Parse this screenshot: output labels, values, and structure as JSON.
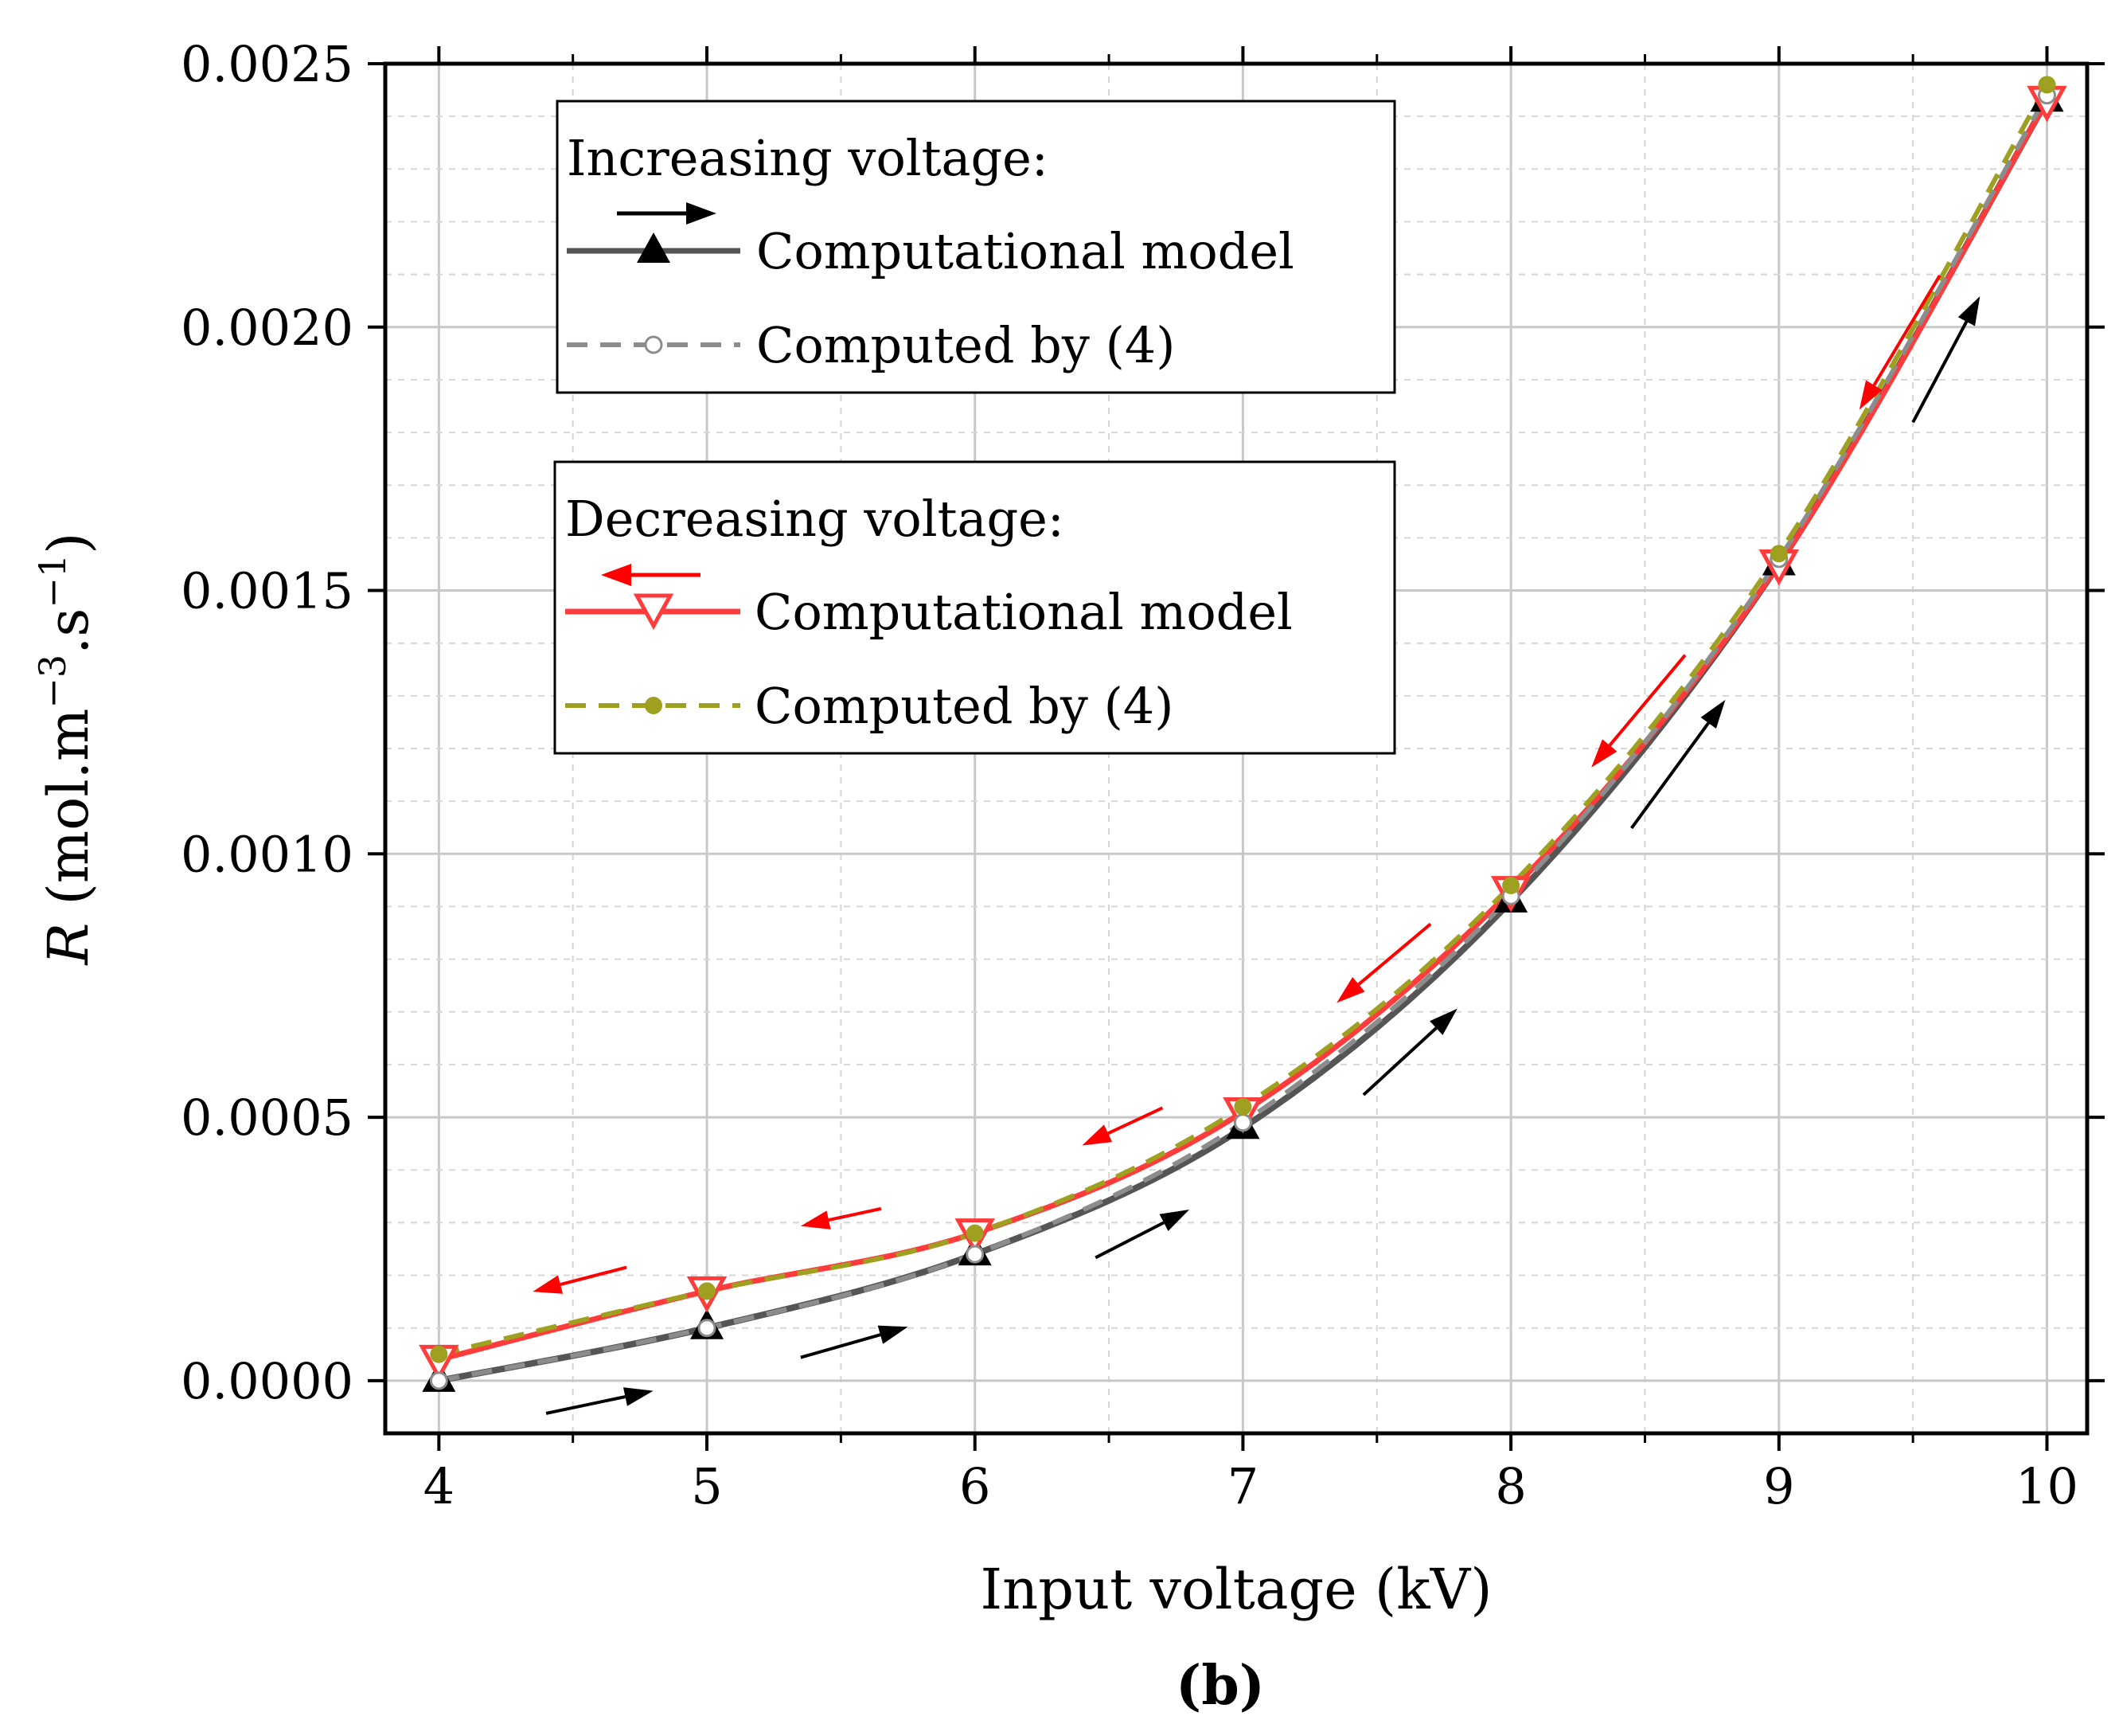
{
  "chart_data": {
    "type": "line",
    "title": "",
    "xlabel": "Input voltage (kV)",
    "ylabel_italic": "R",
    "ylabel_rest": " (mol.m",
    "ylabel_sup1": "−3",
    "ylabel_mid": ".s",
    "ylabel_sup2": "−1",
    "ylabel_end": ")",
    "caption": "(b)",
    "xlim": [
      3.8,
      10.15
    ],
    "ylim": [
      -0.0001,
      0.0025
    ],
    "x_ticks": [
      4,
      5,
      6,
      7,
      8,
      9,
      10
    ],
    "x_tick_labels": [
      "4",
      "5",
      "6",
      "7",
      "8",
      "9",
      "10"
    ],
    "y_ticks": [
      0,
      0.0005,
      0.001,
      0.0015,
      0.002,
      0.0025
    ],
    "y_tick_labels": [
      "0.0000",
      "0.0005",
      "0.0010",
      "0.0015",
      "0.0020",
      "0.0025"
    ],
    "x": [
      4,
      5,
      6,
      7,
      8,
      9,
      10
    ],
    "series": [
      {
        "name": "Increasing voltage: Computational model",
        "color": "#555555",
        "marker": "triangle-up",
        "values": [
          0.0,
          0.0001,
          0.00024,
          0.00048,
          0.00091,
          0.00155,
          0.00243
        ]
      },
      {
        "name": "Increasing voltage: Computed by (4)",
        "color": "#8c8c8c",
        "marker": "open-circle",
        "values": [
          0.0,
          0.0001,
          0.00024,
          0.00049,
          0.00092,
          0.00156,
          0.00244
        ]
      },
      {
        "name": "Decreasing voltage: Computational model",
        "color": "#ff3b3b",
        "marker": "triangle-down-open",
        "values": [
          4e-05,
          0.00017,
          0.00028,
          0.00051,
          0.00093,
          0.00155,
          0.00243
        ]
      },
      {
        "name": "Decreasing voltage: Computed by (4)",
        "color": "#a0a020",
        "marker": "filled-circle",
        "values": [
          5e-05,
          0.00017,
          0.00028,
          0.00052,
          0.00094,
          0.00157,
          0.00246
        ]
      }
    ],
    "legend": [
      {
        "title": "Increasing voltage:",
        "entries": [
          "Computational model",
          "Computed by (4)"
        ]
      },
      {
        "title": "Decreasing voltage:",
        "entries": [
          "Computational model",
          "Computed by (4)"
        ]
      }
    ],
    "direction_arrows": [
      {
        "direction": "increasing",
        "color": "#000000",
        "segments": [
          [
            4.4,
            4.8
          ],
          [
            5.35,
            5.75
          ],
          [
            6.45,
            6.8
          ],
          [
            7.45,
            7.8
          ],
          [
            8.45,
            8.8
          ],
          [
            9.5,
            9.75
          ]
        ]
      },
      {
        "direction": "decreasing",
        "color": "#ff0000",
        "segments": [
          [
            4.7,
            4.35
          ],
          [
            5.65,
            5.35
          ],
          [
            6.7,
            6.4
          ],
          [
            7.7,
            7.35
          ],
          [
            8.65,
            8.3
          ],
          [
            9.6,
            9.3
          ]
        ]
      }
    ],
    "grid": true
  }
}
